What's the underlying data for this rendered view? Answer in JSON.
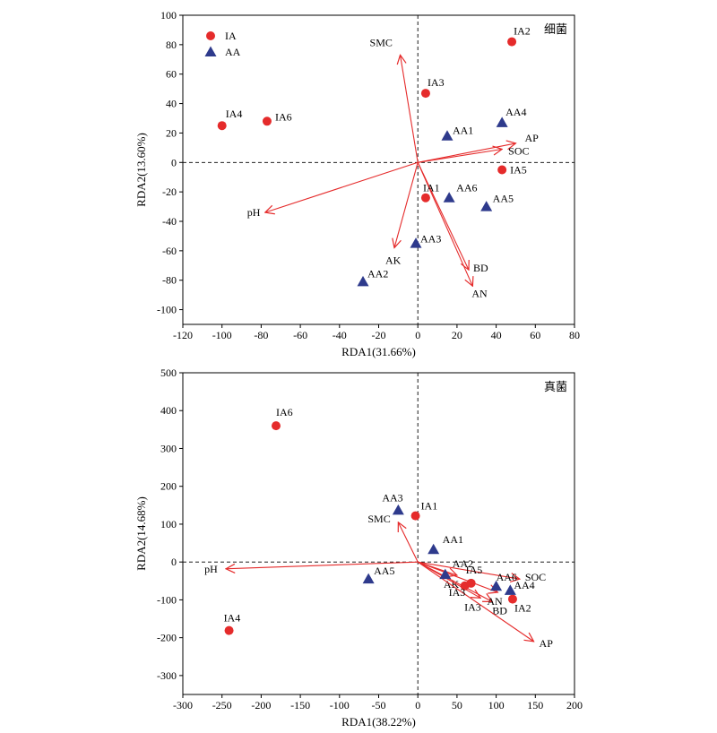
{
  "colors": {
    "ia": "#e52b2b",
    "aa": "#2e3a8c",
    "arrow": "#e52b2b"
  },
  "legend": {
    "ia_label": "IA",
    "aa_label": "AA"
  },
  "chart_data": [
    {
      "type": "scatter",
      "title": "细菌",
      "xlabel": "RDA1(31.66%)",
      "ylabel": "RDA2(13.60%)",
      "xlim": [
        -120,
        80
      ],
      "ylim": [
        -110,
        100
      ],
      "xticks": [
        -120,
        -100,
        -80,
        -60,
        -40,
        -20,
        0,
        20,
        40,
        60,
        80
      ],
      "yticks": [
        -100,
        -80,
        -60,
        -40,
        -20,
        0,
        20,
        40,
        60,
        80,
        100
      ],
      "legend_position": "top-left",
      "series": [
        {
          "name": "IA",
          "marker": "circle",
          "points": [
            {
              "label": "IA1",
              "x": 4,
              "y": -24
            },
            {
              "label": "IA2",
              "x": 48,
              "y": 82
            },
            {
              "label": "IA3",
              "x": 4,
              "y": 47
            },
            {
              "label": "IA4",
              "x": -100,
              "y": 25
            },
            {
              "label": "IA5",
              "x": 43,
              "y": -5
            },
            {
              "label": "IA6",
              "x": -77,
              "y": 28
            }
          ]
        },
        {
          "name": "AA",
          "marker": "triangle",
          "points": [
            {
              "label": "AA1",
              "x": 15,
              "y": 18
            },
            {
              "label": "AA2",
              "x": -28,
              "y": -81
            },
            {
              "label": "AA3",
              "x": -1,
              "y": -55
            },
            {
              "label": "AA4",
              "x": 43,
              "y": 27
            },
            {
              "label": "AA5",
              "x": 35,
              "y": -30
            },
            {
              "label": "AA6",
              "x": 16,
              "y": -24
            }
          ]
        }
      ],
      "vectors": [
        {
          "label": "SMC",
          "x": -9,
          "y": 73
        },
        {
          "label": "AP",
          "x": 50,
          "y": 13
        },
        {
          "label": "SOC",
          "x": 43,
          "y": 9
        },
        {
          "label": "pH",
          "x": -78,
          "y": -34
        },
        {
          "label": "AK",
          "x": -12,
          "y": -58
        },
        {
          "label": "BD",
          "x": 26,
          "y": -73
        },
        {
          "label": "AN",
          "x": 28,
          "y": -84
        }
      ]
    },
    {
      "type": "scatter",
      "title": "真菌",
      "xlabel": "RDA1(38.22%)",
      "ylabel": "RDA2(14.68%)",
      "xlim": [
        -300,
        200
      ],
      "ylim": [
        -350,
        500
      ],
      "xticks": [
        -300,
        -250,
        -200,
        -150,
        -100,
        -50,
        0,
        50,
        100,
        150,
        200
      ],
      "yticks": [
        -300,
        -200,
        -100,
        0,
        100,
        200,
        300,
        400,
        500
      ],
      "series": [
        {
          "name": "IA",
          "marker": "circle",
          "points": [
            {
              "label": "IA1",
              "x": -3,
              "y": 122
            },
            {
              "label": "IA2",
              "x": 121,
              "y": -98
            },
            {
              "label": "IA3",
              "x": 60,
              "y": -63
            },
            {
              "label": "IA4",
              "x": -241,
              "y": -181
            },
            {
              "label": "IA5",
              "x": 68,
              "y": -56
            },
            {
              "label": "IA6",
              "x": -181,
              "y": 360
            }
          ]
        },
        {
          "name": "AA",
          "marker": "triangle",
          "points": [
            {
              "label": "AA1",
              "x": 20,
              "y": 33
            },
            {
              "label": "AA2",
              "x": 35,
              "y": -33
            },
            {
              "label": "AA3",
              "x": -25,
              "y": 137
            },
            {
              "label": "AA4",
              "x": 118,
              "y": -75
            },
            {
              "label": "AA5",
              "x": -63,
              "y": -45
            },
            {
              "label": "AA6",
              "x": 100,
              "y": -64
            }
          ]
        }
      ],
      "vectors": [
        {
          "label": "SMC",
          "x": -25,
          "y": 105
        },
        {
          "label": "pH",
          "x": -245,
          "y": -18
        },
        {
          "label": "AK",
          "x": 50,
          "y": -35
        },
        {
          "label": "IA3",
          "x": 80,
          "y": -95
        },
        {
          "label": "BD",
          "x": 95,
          "y": -105
        },
        {
          "label": "AN",
          "x": 102,
          "y": -80
        },
        {
          "label": "SOC",
          "x": 130,
          "y": -45
        },
        {
          "label": "AP",
          "x": 148,
          "y": -210
        }
      ]
    }
  ]
}
